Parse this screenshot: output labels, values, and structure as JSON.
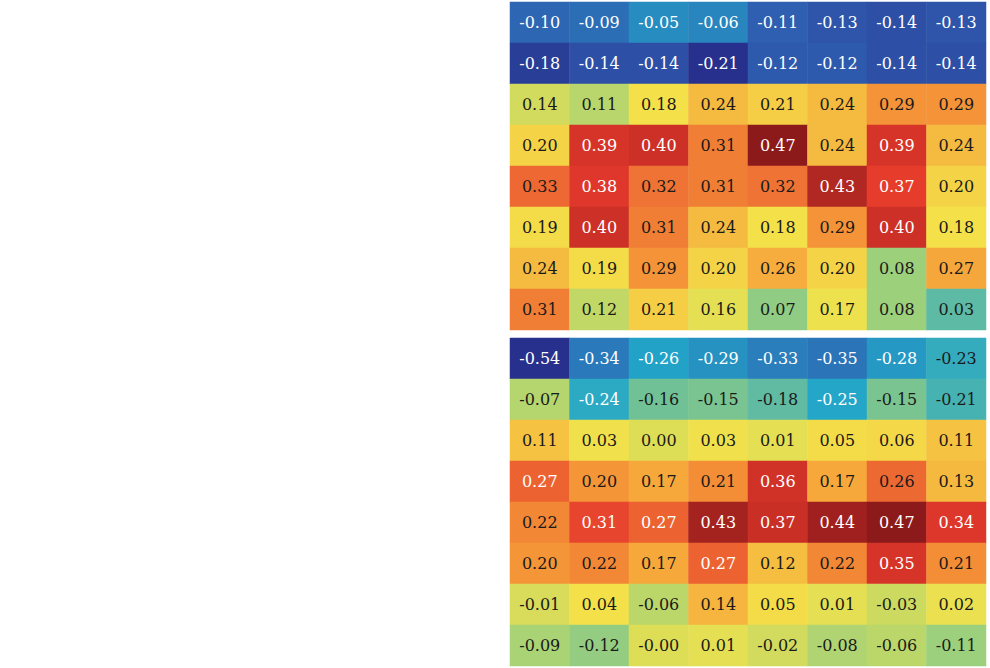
{
  "chart_data": [
    {
      "type": "heatmap",
      "data_labels": true,
      "tick_labels": false,
      "cells": [
        [
          -0.1,
          -0.09,
          -0.05,
          -0.06,
          -0.11,
          -0.13,
          -0.14,
          -0.13
        ],
        [
          -0.18,
          -0.14,
          -0.14,
          -0.21,
          -0.12,
          -0.12,
          -0.14,
          -0.14
        ],
        [
          0.14,
          0.11,
          0.18,
          0.24,
          0.21,
          0.24,
          0.29,
          0.29
        ],
        [
          0.2,
          0.39,
          0.4,
          0.31,
          0.47,
          0.24,
          0.39,
          0.24
        ],
        [
          0.33,
          0.38,
          0.32,
          0.31,
          0.32,
          0.43,
          0.37,
          0.2
        ],
        [
          0.19,
          0.4,
          0.31,
          0.24,
          0.18,
          0.29,
          0.4,
          0.18
        ],
        [
          0.24,
          0.19,
          0.29,
          0.2,
          0.26,
          0.2,
          0.08,
          0.27
        ],
        [
          0.31,
          0.12,
          0.21,
          0.16,
          0.07,
          0.17,
          0.08,
          0.03
        ]
      ],
      "value_labels": [
        [
          "-0.10",
          "-0.09",
          "-0.05",
          "-0.06",
          "-0.11",
          "-0.13",
          "-0.14",
          "-0.13"
        ],
        [
          "-0.18",
          "-0.14",
          "-0.14",
          "-0.21",
          "-0.12",
          "-0.12",
          "-0.14",
          "-0.14"
        ],
        [
          "0.14",
          "0.11",
          "0.18",
          "0.24",
          "0.21",
          "0.24",
          "0.29",
          "0.29"
        ],
        [
          "0.20",
          "0.39",
          "0.40",
          "0.31",
          "0.47",
          "0.24",
          "0.39",
          "0.24"
        ],
        [
          "0.33",
          "0.38",
          "0.32",
          "0.31",
          "0.32",
          "0.43",
          "0.37",
          "0.20"
        ],
        [
          "0.19",
          "0.40",
          "0.31",
          "0.24",
          "0.18",
          "0.29",
          "0.40",
          "0.18"
        ],
        [
          "0.24",
          "0.19",
          "0.29",
          "0.20",
          "0.26",
          "0.20",
          "0.08",
          "0.27"
        ],
        [
          "0.31",
          "0.12",
          "0.21",
          "0.16",
          "0.07",
          "0.17",
          "0.08",
          "0.03"
        ]
      ]
    },
    {
      "type": "heatmap",
      "data_labels": true,
      "tick_labels": false,
      "cells": [
        [
          -0.54,
          -0.34,
          -0.26,
          -0.29,
          -0.33,
          -0.35,
          -0.28,
          -0.23
        ],
        [
          -0.07,
          -0.24,
          -0.16,
          -0.15,
          -0.18,
          -0.25,
          -0.15,
          -0.21
        ],
        [
          0.11,
          0.03,
          0,
          0.03,
          0.01,
          0.05,
          0.06,
          0.11
        ],
        [
          0.27,
          0.2,
          0.17,
          0.21,
          0.36,
          0.17,
          0.26,
          0.13
        ],
        [
          0.22,
          0.31,
          0.27,
          0.43,
          0.37,
          0.44,
          0.47,
          0.34
        ],
        [
          0.2,
          0.22,
          0.17,
          0.27,
          0.12,
          0.22,
          0.35,
          0.21
        ],
        [
          -0.01,
          0.04,
          -0.06,
          0.14,
          0.05,
          0.01,
          -0.03,
          0.02
        ],
        [
          -0.09,
          -0.12,
          0,
          0.01,
          -0.02,
          -0.08,
          -0.06,
          -0.11
        ]
      ],
      "value_labels": [
        [
          "-0.54",
          "-0.34",
          "-0.26",
          "-0.29",
          "-0.33",
          "-0.35",
          "-0.28",
          "-0.23"
        ],
        [
          "-0.07",
          "-0.24",
          "-0.16",
          "-0.15",
          "-0.18",
          "-0.25",
          "-0.15",
          "-0.21"
        ],
        [
          "0.11",
          "0.03",
          "0.00",
          "0.03",
          "0.01",
          "0.05",
          "0.06",
          "0.11"
        ],
        [
          "0.27",
          "0.20",
          "0.17",
          "0.21",
          "0.36",
          "0.17",
          "0.26",
          "0.13"
        ],
        [
          "0.22",
          "0.31",
          "0.27",
          "0.43",
          "0.37",
          "0.44",
          "0.47",
          "0.34"
        ],
        [
          "0.20",
          "0.22",
          "0.17",
          "0.27",
          "0.12",
          "0.22",
          "0.35",
          "0.21"
        ],
        [
          "-0.01",
          "0.04",
          "-0.06",
          "0.14",
          "0.05",
          "0.01",
          "-0.03",
          "0.02"
        ],
        [
          "-0.09",
          "-0.12",
          "-0.00",
          "0.01",
          "-0.02",
          "-0.08",
          "-0.06",
          "-0.11"
        ]
      ]
    }
  ]
}
